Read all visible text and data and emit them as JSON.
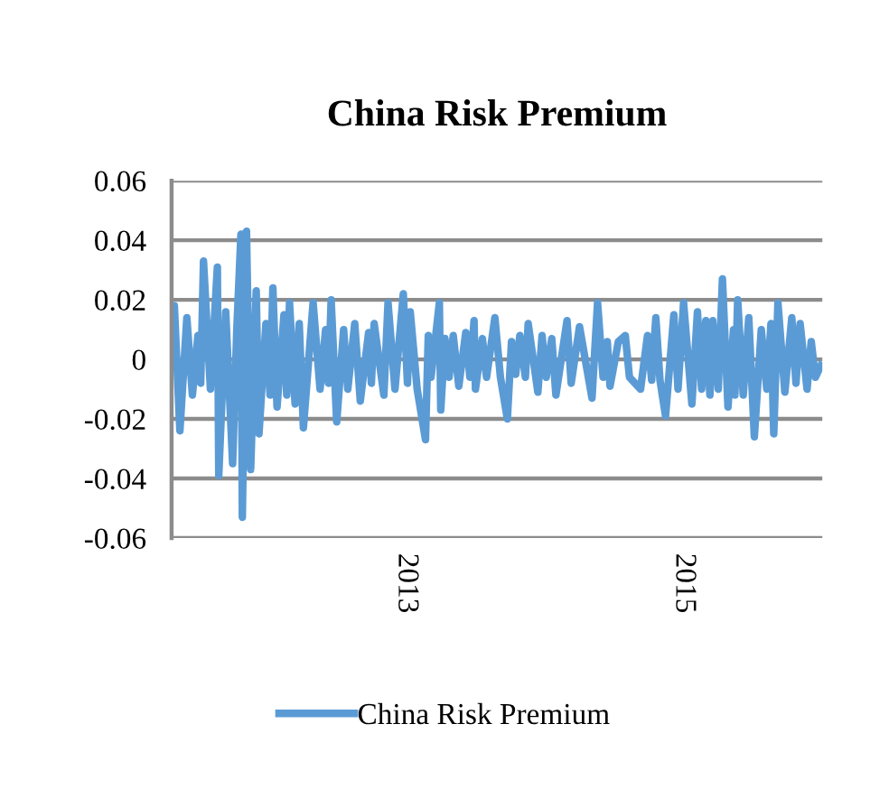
{
  "chart_data": {
    "type": "line",
    "title": "China Risk Premium",
    "x": [
      2011.31,
      2011.33,
      2011.37,
      2011.42,
      2011.46,
      2011.5,
      2011.52,
      2011.54,
      2011.59,
      2011.64,
      2011.65,
      2011.7,
      2011.75,
      2011.78,
      2011.81,
      2011.82,
      2011.85,
      2011.88,
      2011.92,
      2011.94,
      2011.99,
      2012.02,
      2012.04,
      2012.07,
      2012.12,
      2012.14,
      2012.16,
      2012.2,
      2012.23,
      2012.26,
      2012.33,
      2012.38,
      2012.42,
      2012.44,
      2012.46,
      2012.5,
      2012.55,
      2012.58,
      2012.63,
      2012.67,
      2012.73,
      2012.75,
      2012.77,
      2012.84,
      2012.87,
      2012.92,
      2012.98,
      2013.01,
      2013.03,
      2013.08,
      2013.14,
      2013.16,
      2013.18,
      2013.24,
      2013.25,
      2013.28,
      2013.31,
      2013.34,
      2013.38,
      2013.43,
      2013.46,
      2013.49,
      2013.5,
      2013.55,
      2013.58,
      2013.64,
      2013.68,
      2013.73,
      2013.76,
      2013.79,
      2013.82,
      2013.86,
      2013.88,
      2013.95,
      2013.98,
      2014.01,
      2014.05,
      2014.08,
      2014.16,
      2014.19,
      2014.25,
      2014.34,
      2014.38,
      2014.42,
      2014.45,
      2014.47,
      2014.53,
      2014.58,
      2014.61,
      2014.69,
      2014.74,
      2014.77,
      2014.8,
      2014.83,
      2014.87,
      2014.93,
      2014.96,
      2015.0,
      2015.06,
      2015.1,
      2015.13,
      2015.16,
      2015.19,
      2015.21,
      2015.25,
      2015.28,
      2015.32,
      2015.36,
      2015.37,
      2015.39,
      2015.43,
      2015.47,
      2015.51,
      2015.56,
      2015.6,
      2015.63,
      2015.65,
      2015.68,
      2015.73,
      2015.78,
      2015.81,
      2015.84,
      2015.89,
      2015.92,
      2015.95,
      2015.99
    ],
    "series": [
      {
        "name": "China Risk Premium",
        "color": "#5b9bd5",
        "values": [
          0.0,
          0.018,
          -0.024,
          0.014,
          -0.012,
          0.008,
          -0.008,
          0.033,
          -0.01,
          0.031,
          -0.039,
          0.016,
          -0.035,
          0.01,
          0.042,
          -0.053,
          0.043,
          -0.037,
          0.023,
          -0.025,
          0.012,
          -0.012,
          0.024,
          -0.016,
          0.015,
          -0.012,
          0.019,
          -0.015,
          0.012,
          -0.023,
          0.019,
          -0.01,
          0.01,
          -0.008,
          0.02,
          -0.021,
          0.01,
          -0.01,
          0.012,
          -0.014,
          0.009,
          -0.008,
          0.012,
          -0.012,
          0.019,
          -0.01,
          0.022,
          -0.008,
          0.016,
          -0.01,
          -0.027,
          0.008,
          -0.006,
          0.019,
          -0.017,
          0.007,
          -0.006,
          0.008,
          -0.009,
          0.009,
          -0.006,
          0.013,
          -0.01,
          0.007,
          -0.006,
          0.014,
          -0.006,
          -0.02,
          0.006,
          -0.005,
          0.008,
          -0.006,
          0.012,
          -0.011,
          0.008,
          -0.006,
          0.007,
          -0.012,
          0.013,
          -0.008,
          0.011,
          -0.013,
          0.019,
          -0.006,
          0.006,
          -0.009,
          0.006,
          0.008,
          -0.006,
          -0.01,
          0.008,
          -0.007,
          0.014,
          -0.007,
          -0.019,
          0.015,
          -0.01,
          0.019,
          -0.015,
          0.016,
          -0.01,
          0.013,
          -0.012,
          0.013,
          -0.01,
          0.027,
          -0.016,
          0.01,
          -0.012,
          0.02,
          -0.012,
          0.014,
          -0.026,
          0.01,
          -0.01,
          0.012,
          -0.025,
          0.019,
          -0.011,
          0.014,
          -0.008,
          0.012,
          -0.01,
          0.006,
          -0.006,
          -0.002
        ]
      }
    ],
    "xlim": [
      2011.31,
      2016.0
    ],
    "xticks": [
      2013,
      2015
    ],
    "ylim": [
      -0.06,
      0.06
    ],
    "yticks": [
      {
        "value": 0.06,
        "label": "0.06"
      },
      {
        "value": 0.04,
        "label": "0.04"
      },
      {
        "value": 0.02,
        "label": "0.02"
      },
      {
        "value": 0,
        "label": "0"
      },
      {
        "value": -0.02,
        "label": "-0.02"
      },
      {
        "value": -0.04,
        "label": "-0.04"
      },
      {
        "value": -0.06,
        "label": "-0.06"
      }
    ],
    "grid": "y",
    "legend": "bottom",
    "marker": "none",
    "line_style": "solid"
  }
}
